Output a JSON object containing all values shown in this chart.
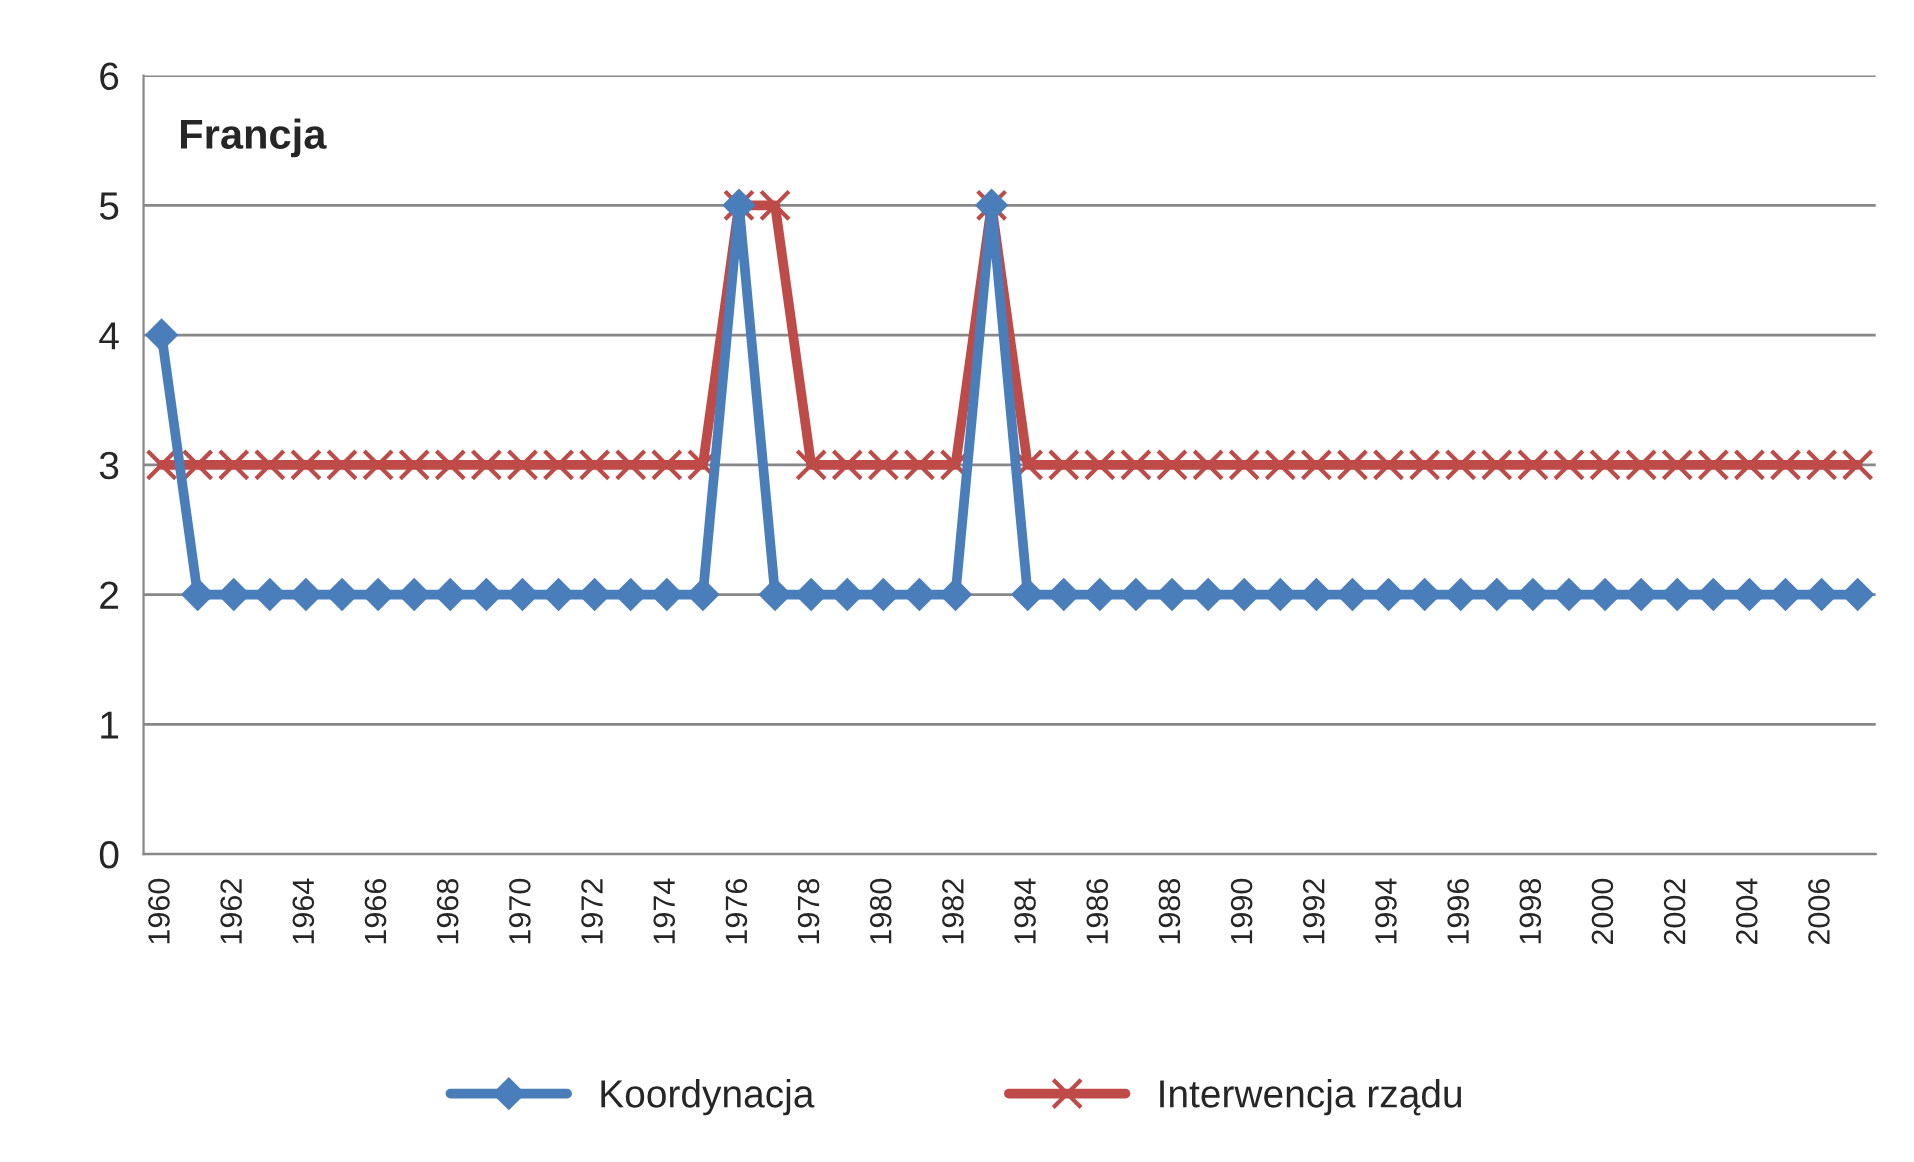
{
  "chart_data": {
    "type": "line",
    "categories": [
      "1960",
      null,
      "1962",
      null,
      "1964",
      null,
      "1966",
      null,
      "1968",
      null,
      "1970",
      null,
      "1972",
      null,
      "1974",
      null,
      "1976",
      null,
      "1978",
      null,
      "1980",
      null,
      "1982",
      null,
      "1984",
      null,
      "1986",
      null,
      "1988",
      null,
      "1990",
      null,
      "1992",
      null,
      "1994",
      null,
      "1996",
      null,
      "1998",
      null,
      "2000",
      null,
      "2002",
      null,
      "2004",
      null,
      "2006",
      null
    ],
    "series": [
      {
        "name": "Koordynacja",
        "color": "#4a7ebb",
        "marker": "diamond",
        "values": [
          4,
          2,
          2,
          2,
          2,
          2,
          2,
          2,
          2,
          2,
          2,
          2,
          2,
          2,
          2,
          2,
          5,
          2,
          2,
          2,
          2,
          2,
          2,
          5,
          2,
          2,
          2,
          2,
          2,
          2,
          2,
          2,
          2,
          2,
          2,
          2,
          2,
          2,
          2,
          2,
          2,
          2,
          2,
          2,
          2,
          2,
          2,
          2
        ]
      },
      {
        "name": "Interwencja rządu",
        "color": "#be4b48",
        "marker": "cross",
        "values": [
          3,
          3,
          3,
          3,
          3,
          3,
          3,
          3,
          3,
          3,
          3,
          3,
          3,
          3,
          3,
          3,
          5,
          5,
          3,
          3,
          3,
          3,
          3,
          5,
          3,
          3,
          3,
          3,
          3,
          3,
          3,
          3,
          3,
          3,
          3,
          3,
          3,
          3,
          3,
          3,
          3,
          3,
          3,
          3,
          3,
          3,
          3,
          3
        ]
      }
    ],
    "ylim": [
      0,
      6
    ],
    "yticks": [
      0,
      1,
      2,
      3,
      4,
      5,
      6
    ],
    "grid": "y",
    "legend": "bottom",
    "line_style": "solid",
    "annotations": [
      "Francja"
    ]
  }
}
